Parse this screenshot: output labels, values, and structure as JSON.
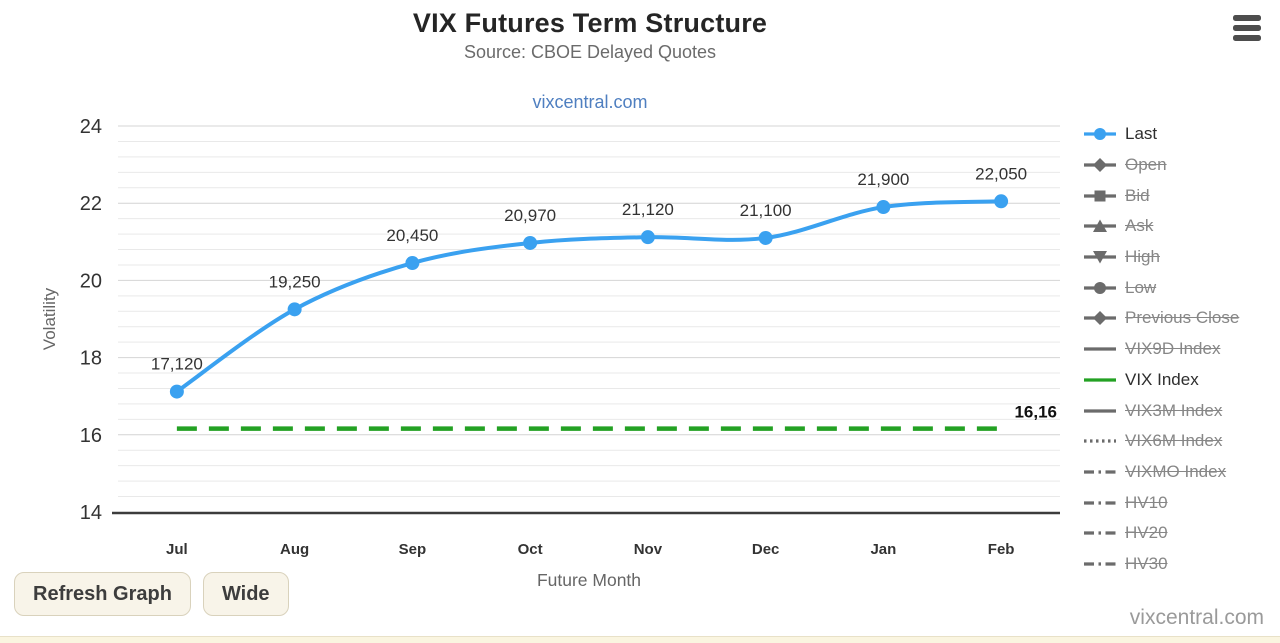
{
  "page": {
    "link": "vixcentral.com",
    "watermark": "vixcentral.com"
  },
  "buttons": {
    "refresh": "Refresh Graph",
    "wide": "Wide"
  },
  "colors": {
    "last_line": "#3aa1f0",
    "vix_line": "#23a123",
    "grid_minor": "#e9e9e9",
    "grid_major": "#d4d4d4",
    "axis_line": "#3c3c3c",
    "label_dark": "#333333",
    "label_gray": "#666666",
    "legend_gray": "#6b6b6b",
    "point_label": "#333333",
    "vix_label": "#111111"
  },
  "chart_data": {
    "type": "line",
    "title": "VIX Futures Term Structure",
    "subtitle": "Source: CBOE Delayed Quotes",
    "xlabel": "Future Month",
    "ylabel": "Volatility",
    "ylim": [
      14,
      24
    ],
    "yticks": [
      14,
      16,
      18,
      20,
      22,
      24
    ],
    "minor_tick_interval": 0.4,
    "grid": true,
    "legend_position": "right",
    "categories": [
      "Jul",
      "Aug",
      "Sep",
      "Oct",
      "Nov",
      "Dec",
      "Jan",
      "Feb"
    ],
    "series": [
      {
        "name": "Last",
        "style": "spline",
        "color": "#3aa1f0",
        "marker": "circle",
        "values": [
          17.12,
          19.25,
          20.45,
          20.97,
          21.12,
          21.1,
          21.9,
          22.05
        ],
        "labels": [
          "17,120",
          "19,250",
          "20,450",
          "20,970",
          "21,120",
          "21,100",
          "21,900",
          "22,050"
        ]
      },
      {
        "name": "VIX Index",
        "style": "dashed-flat",
        "color": "#23a123",
        "marker": "none",
        "value": 16.16,
        "label": "16,16"
      }
    ]
  },
  "legend": {
    "items": [
      {
        "label": "Last",
        "marker": "circle",
        "line": "solid",
        "color": "#3aa1f0",
        "active": true
      },
      {
        "label": "Open",
        "marker": "diamond",
        "line": "solid",
        "color": "#6b6b6b",
        "active": false
      },
      {
        "label": "Bid",
        "marker": "square",
        "line": "solid",
        "color": "#6b6b6b",
        "active": false
      },
      {
        "label": "Ask",
        "marker": "triangle-up",
        "line": "solid",
        "color": "#6b6b6b",
        "active": false
      },
      {
        "label": "High",
        "marker": "triangle-down",
        "line": "solid",
        "color": "#6b6b6b",
        "active": false
      },
      {
        "label": "Low",
        "marker": "circle",
        "line": "solid",
        "color": "#6b6b6b",
        "active": false
      },
      {
        "label": "Previous Close",
        "marker": "diamond",
        "line": "solid",
        "color": "#6b6b6b",
        "active": false
      },
      {
        "label": "VIX9D Index",
        "marker": "none",
        "line": "solid",
        "color": "#6b6b6b",
        "active": false
      },
      {
        "label": "VIX Index",
        "marker": "none",
        "line": "solid",
        "color": "#23a123",
        "active": true
      },
      {
        "label": "VIX3M Index",
        "marker": "none",
        "line": "solid",
        "color": "#6b6b6b",
        "active": false
      },
      {
        "label": "VIX6M Index",
        "marker": "none",
        "line": "dotted",
        "color": "#6b6b6b",
        "active": false
      },
      {
        "label": "VIXMO Index",
        "marker": "none",
        "line": "dashdot",
        "color": "#6b6b6b",
        "active": false
      },
      {
        "label": "HV10",
        "marker": "none",
        "line": "dashdot",
        "color": "#6b6b6b",
        "active": false
      },
      {
        "label": "HV20",
        "marker": "none",
        "line": "dashdot",
        "color": "#6b6b6b",
        "active": false
      },
      {
        "label": "HV30",
        "marker": "none",
        "line": "dashdot",
        "color": "#6b6b6b",
        "active": false
      }
    ]
  }
}
